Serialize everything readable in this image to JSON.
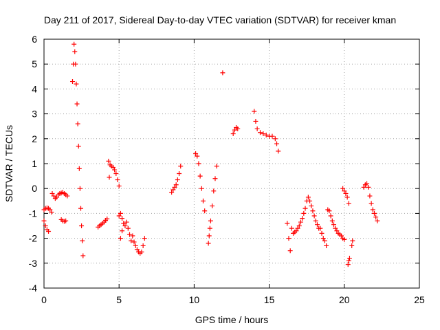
{
  "chart_data": {
    "type": "scatter",
    "title": "Day 211 of 2017, Sidereal Day-to-day VTEC variation (SDTVAR) for receiver kman",
    "xlabel": "GPS time / hours",
    "ylabel": "SDTVAR / TECUs",
    "xlim": [
      0,
      25
    ],
    "ylim": [
      -4,
      6
    ],
    "xticks": [
      0,
      5,
      10,
      15,
      20,
      25
    ],
    "yticks": [
      -4,
      -3,
      -2,
      -1,
      0,
      1,
      2,
      3,
      4,
      5,
      6
    ],
    "grid": true,
    "legend": "none",
    "marker": "+",
    "color": "#ff0000",
    "segments": [
      {
        "x": [
          0.0,
          0.1,
          0.2,
          0.3
        ],
        "y": [
          -1.3,
          -1.5,
          -1.65,
          -1.72
        ]
      },
      {
        "x": [
          0.0,
          0.1,
          0.2,
          0.3,
          0.4,
          0.5
        ],
        "y": [
          -0.85,
          -0.8,
          -0.78,
          -0.8,
          -0.85,
          -0.95
        ]
      },
      {
        "x": [
          0.55,
          0.65,
          0.75,
          0.85,
          0.95,
          1.05,
          1.15,
          1.25,
          1.35,
          1.45,
          1.55
        ],
        "y": [
          -0.2,
          -0.3,
          -0.4,
          -0.35,
          -0.25,
          -0.2,
          -0.18,
          -0.15,
          -0.2,
          -0.25,
          -0.3
        ]
      },
      {
        "x": [
          1.15,
          1.25,
          1.35,
          1.45
        ],
        "y": [
          -1.25,
          -1.3,
          -1.32,
          -1.3
        ]
      },
      {
        "x": [
          1.9,
          1.95,
          2.0,
          2.05,
          2.1,
          2.15,
          2.2,
          2.25,
          2.3,
          2.35,
          2.4,
          2.45,
          2.5,
          2.55,
          2.6
        ],
        "y": [
          4.3,
          5.0,
          5.8,
          5.5,
          5.0,
          4.2,
          3.4,
          2.6,
          1.7,
          0.8,
          0.0,
          -0.8,
          -1.5,
          -2.1,
          -2.7
        ]
      },
      {
        "x": [
          3.6,
          3.7,
          3.8,
          3.9,
          4.0,
          4.1,
          4.2
        ],
        "y": [
          -1.55,
          -1.5,
          -1.45,
          -1.4,
          -1.35,
          -1.28,
          -1.22
        ]
      },
      {
        "x": [
          4.3,
          4.4,
          4.5,
          4.6,
          4.7,
          4.8,
          4.9,
          5.0
        ],
        "y": [
          1.1,
          0.95,
          0.9,
          0.85,
          0.75,
          0.6,
          0.35,
          0.1
        ]
      },
      {
        "x": [
          4.35
        ],
        "y": [
          0.45
        ]
      },
      {
        "x": [
          5.0,
          5.1,
          5.2,
          5.3,
          5.4,
          5.5,
          5.6,
          5.7,
          5.8,
          5.9,
          6.0,
          6.1,
          6.2,
          6.3,
          6.4,
          6.5,
          6.6,
          6.7
        ],
        "y": [
          -1.1,
          -1.0,
          -1.2,
          -1.4,
          -1.5,
          -1.35,
          -1.6,
          -1.85,
          -2.1,
          -1.9,
          -2.15,
          -2.3,
          -2.45,
          -2.55,
          -2.6,
          -2.55,
          -2.3,
          -2.0
        ]
      },
      {
        "x": [
          5.1,
          5.2
        ],
        "y": [
          -2.0,
          -1.7
        ]
      },
      {
        "x": [
          8.5,
          8.6,
          8.7,
          8.8,
          8.9,
          9.0,
          9.1
        ],
        "y": [
          -0.15,
          -0.05,
          0.05,
          0.15,
          0.35,
          0.6,
          0.9
        ]
      },
      {
        "x": [
          10.1,
          10.2,
          10.3,
          10.4,
          10.5,
          10.6,
          10.7
        ],
        "y": [
          1.4,
          1.3,
          1.0,
          0.5,
          0.0,
          -0.5,
          -0.9
        ]
      },
      {
        "x": [
          10.95,
          11.0,
          11.05,
          11.1,
          11.2,
          11.3,
          11.4,
          11.5
        ],
        "y": [
          -2.2,
          -1.9,
          -1.6,
          -1.3,
          -0.7,
          -0.1,
          0.4,
          0.9
        ]
      },
      {
        "x": [
          11.9
        ],
        "y": [
          4.65
        ]
      },
      {
        "x": [
          12.6,
          12.7,
          12.8,
          12.9
        ],
        "y": [
          2.2,
          2.35,
          2.45,
          2.4
        ]
      },
      {
        "x": [
          14.0,
          14.1,
          14.2,
          14.4,
          14.6,
          14.8,
          15.0,
          15.2,
          15.4,
          15.5,
          15.6
        ],
        "y": [
          3.1,
          2.7,
          2.4,
          2.25,
          2.2,
          2.15,
          2.1,
          2.1,
          2.0,
          1.8,
          1.5
        ]
      },
      {
        "x": [
          16.2,
          16.3,
          16.4,
          16.5,
          16.6,
          16.7,
          16.8,
          16.9,
          17.0,
          17.1,
          17.2,
          17.3
        ],
        "y": [
          -1.4,
          -2.0,
          -2.5,
          -1.6,
          -1.8,
          -1.75,
          -1.7,
          -1.6,
          -1.5,
          -1.35,
          -1.2,
          -1.0
        ]
      },
      {
        "x": [
          17.4,
          17.5,
          17.6,
          17.7,
          17.8,
          17.9,
          18.0,
          18.1,
          18.2,
          18.3
        ],
        "y": [
          -0.8,
          -0.5,
          -0.35,
          -0.5,
          -0.7,
          -0.9,
          -1.1,
          -1.3,
          -1.45,
          -1.6
        ]
      },
      {
        "x": [
          18.4,
          18.5,
          18.6,
          18.7,
          18.8
        ],
        "y": [
          -1.6,
          -1.8,
          -2.0,
          -2.1,
          -2.3
        ]
      },
      {
        "x": [
          18.9,
          19.0,
          19.1,
          19.2,
          19.3,
          19.4,
          19.5,
          19.6,
          19.7,
          19.8,
          19.9,
          20.0
        ],
        "y": [
          -0.85,
          -0.9,
          -1.1,
          -1.3,
          -1.45,
          -1.6,
          -1.7,
          -1.8,
          -1.85,
          -1.9,
          -2.0,
          -2.05
        ]
      },
      {
        "x": [
          19.9,
          20.0,
          20.1,
          20.2,
          20.3
        ],
        "y": [
          0.0,
          -0.1,
          -0.2,
          -0.35,
          -0.6
        ]
      },
      {
        "x": [
          20.25,
          20.3,
          20.35
        ],
        "y": [
          -3.05,
          -2.9,
          -2.8
        ]
      },
      {
        "x": [
          20.5,
          20.55
        ],
        "y": [
          -2.3,
          -2.1
        ]
      },
      {
        "x": [
          21.3,
          21.4,
          21.5,
          21.6,
          21.7,
          21.8,
          21.9,
          22.0,
          22.1,
          22.2
        ],
        "y": [
          0.05,
          0.15,
          0.2,
          0.05,
          -0.3,
          -0.6,
          -0.85,
          -1.0,
          -1.15,
          -1.3
        ]
      }
    ]
  }
}
